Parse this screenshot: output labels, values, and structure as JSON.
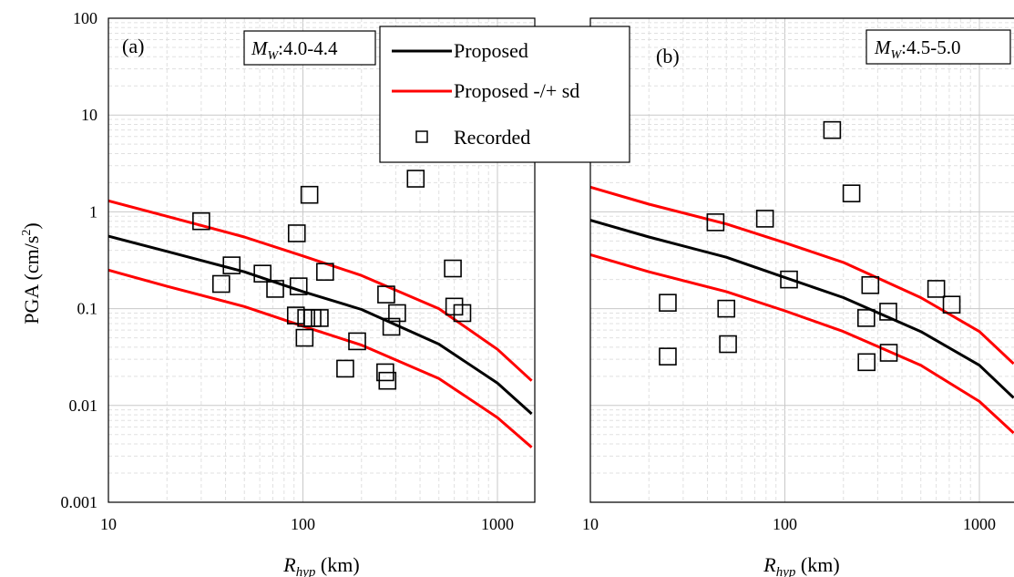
{
  "chart_data": [
    {
      "type": "scatter",
      "panel_label": "(a)",
      "magnitude_label": {
        "symbol": "M",
        "sub": "W",
        "range": ":4.0-4.4"
      },
      "xlabel": {
        "symbol": "R",
        "sub": "hyp",
        "unit": " (km)"
      },
      "ylabel": {
        "main": "PGA (cm/s",
        "sup": "2",
        "close": ")"
      },
      "x_scale": "log",
      "y_scale": "log",
      "xlim": [
        10,
        1500
      ],
      "ylim": [
        0.001,
        100
      ],
      "x_ticks": [
        10,
        100,
        1000
      ],
      "x_tick_labels": [
        "10",
        "100",
        "1000"
      ],
      "y_ticks": [
        0.001,
        0.01,
        0.1,
        1,
        10,
        100
      ],
      "y_tick_labels": [
        "0.001",
        "0.01",
        "0.1",
        "1",
        "10",
        "100"
      ],
      "grid": true,
      "series": [
        {
          "name": "Proposed",
          "kind": "line",
          "color": "#000000",
          "x": [
            10,
            20,
            50,
            100,
            200,
            500,
            1000,
            1500
          ],
          "y": [
            0.56,
            0.39,
            0.24,
            0.15,
            0.098,
            0.043,
            0.017,
            0.0082
          ]
        },
        {
          "name": "Proposed -/+ sd",
          "kind": "line",
          "color": "#ff0000",
          "x": [
            10,
            20,
            50,
            100,
            200,
            500,
            1000,
            1500
          ],
          "y": [
            1.3,
            0.9,
            0.55,
            0.35,
            0.22,
            0.1,
            0.038,
            0.018
          ]
        },
        {
          "name": "Proposed -/+ sd",
          "kind": "line",
          "color": "#ff0000",
          "x": [
            10,
            20,
            50,
            100,
            200,
            500,
            1000,
            1500
          ],
          "y": [
            0.25,
            0.17,
            0.105,
            0.066,
            0.042,
            0.019,
            0.0075,
            0.0037
          ]
        },
        {
          "name": "Recorded",
          "kind": "marker",
          "color": "#000000",
          "x": [
            30,
            38,
            43,
            62,
            72,
            93,
            95,
            92,
            104,
            108,
            112,
            122,
            130,
            102,
            165,
            190,
            268,
            265,
            272,
            285,
            305,
            380,
            590,
            600,
            660
          ],
          "y": [
            0.8,
            0.18,
            0.28,
            0.23,
            0.16,
            0.6,
            0.17,
            0.085,
            0.08,
            1.5,
            0.08,
            0.08,
            0.24,
            0.05,
            0.024,
            0.046,
            0.14,
            0.022,
            0.018,
            0.065,
            0.09,
            2.2,
            0.26,
            0.105,
            0.09
          ]
        }
      ]
    },
    {
      "type": "scatter",
      "panel_label": "(b)",
      "magnitude_label": {
        "symbol": "M",
        "sub": "W",
        "range": ":4.5-5.0"
      },
      "xlabel": {
        "symbol": "R",
        "sub": "hyp",
        "unit": " (km)"
      },
      "x_scale": "log",
      "y_scale": "log",
      "xlim": [
        10,
        1500
      ],
      "ylim": [
        0.001,
        100
      ],
      "x_ticks": [
        10,
        100,
        1000
      ],
      "x_tick_labels": [
        "10",
        "100",
        "1000"
      ],
      "grid": true,
      "series": [
        {
          "name": "Proposed",
          "kind": "line",
          "color": "#000000",
          "x": [
            10,
            20,
            50,
            100,
            200,
            500,
            1000,
            1500
          ],
          "y": [
            0.82,
            0.55,
            0.34,
            0.21,
            0.13,
            0.058,
            0.026,
            0.012
          ]
        },
        {
          "name": "Proposed -/+ sd",
          "kind": "line",
          "color": "#ff0000",
          "x": [
            10,
            20,
            50,
            100,
            200,
            500,
            1000,
            1500
          ],
          "y": [
            1.8,
            1.2,
            0.75,
            0.48,
            0.3,
            0.13,
            0.058,
            0.027
          ]
        },
        {
          "name": "Proposed -/+ sd",
          "kind": "line",
          "color": "#ff0000",
          "x": [
            10,
            20,
            50,
            100,
            200,
            500,
            1000,
            1500
          ],
          "y": [
            0.36,
            0.24,
            0.15,
            0.095,
            0.058,
            0.026,
            0.011,
            0.0052
          ]
        },
        {
          "name": "Recorded",
          "kind": "marker",
          "color": "#000000",
          "x": [
            25,
            25,
            44,
            50,
            51,
            79,
            105,
            175,
            220,
            262,
            263,
            275,
            340,
            342,
            600,
            720
          ],
          "y": [
            0.115,
            0.032,
            0.78,
            0.1,
            0.043,
            0.85,
            0.2,
            7.0,
            1.55,
            0.08,
            0.028,
            0.175,
            0.093,
            0.035,
            0.16,
            0.11
          ]
        }
      ]
    }
  ],
  "legend": {
    "placement": "top-center",
    "items": [
      {
        "label": "Proposed",
        "kind": "line",
        "color": "#000000"
      },
      {
        "label": "Proposed -/+ sd",
        "kind": "line",
        "color": "#ff0000"
      },
      {
        "label": "Recorded",
        "kind": "marker",
        "color": "#000000"
      }
    ]
  }
}
